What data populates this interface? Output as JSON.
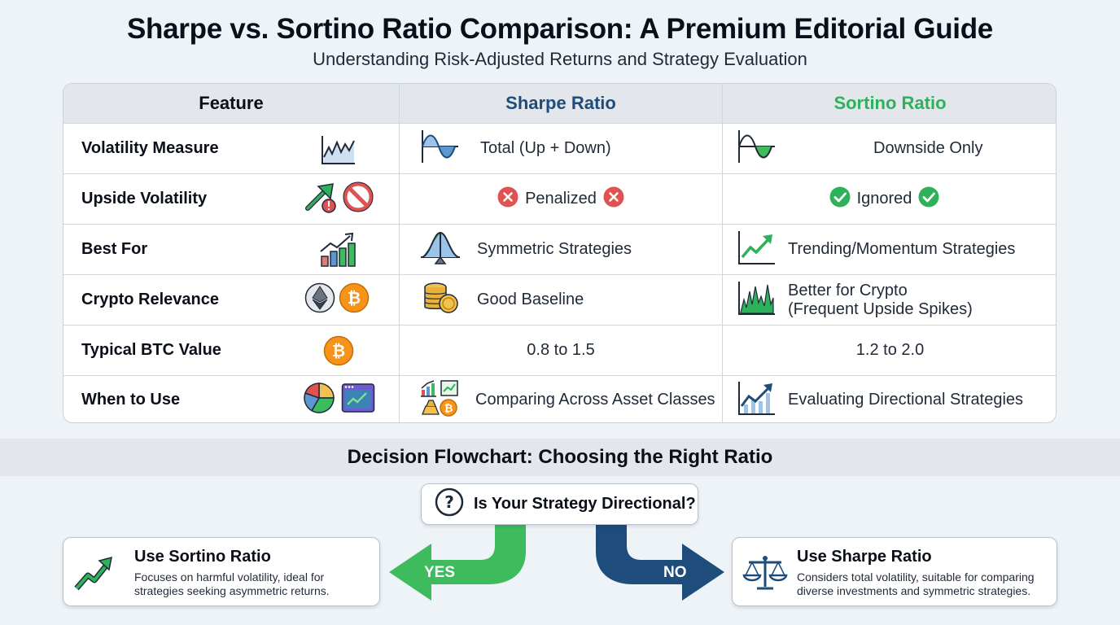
{
  "title": "Sharpe vs. Sortino Ratio Comparison: A Premium Editorial Guide",
  "subtitle": "Understanding Risk-Adjusted Returns and Strategy Evaluation",
  "colors": {
    "sharpe": "#1e4d7b",
    "sortino": "#2fb05a",
    "penalized": "#e05252",
    "ignored": "#2fb05a",
    "yes_arrow": "#3dbb5d",
    "no_arrow": "#1e4d7b"
  },
  "table": {
    "headers": {
      "feature": "Feature",
      "sharpe": "Sharpe Ratio",
      "sortino": "Sortino Ratio"
    },
    "rows": [
      {
        "feature": "Volatility Measure",
        "feature_icons": [
          "line-chart-icon"
        ],
        "sharpe": "Total (Up + Down)",
        "sharpe_icon": "full-wave-icon",
        "sortino": "Downside Only",
        "sortino_icon": "downside-wave-icon"
      },
      {
        "feature": "Upside Volatility",
        "feature_icons": [
          "upward-arrow-warning-icon",
          "prohibited-icon"
        ],
        "sharpe": "Penalized",
        "sharpe_icon": "x-circle-icon",
        "sortino": "Ignored",
        "sortino_icon": "check-circle-icon"
      },
      {
        "feature": "Best For",
        "feature_icons": [
          "bar-chart-trend-icon"
        ],
        "sharpe": "Symmetric Strategies",
        "sharpe_icon": "symmetric-distribution-icon",
        "sortino": "Trending/Momentum Strategies",
        "sortino_icon": "trend-up-icon"
      },
      {
        "feature": "Crypto Relevance",
        "feature_icons": [
          "ethereum-icon",
          "bitcoin-icon"
        ],
        "sharpe": "Good Baseline",
        "sharpe_icon": "coin-stack-icon",
        "sortino": "Better for Crypto",
        "sortino_line2": "(Frequent Upside Spikes)",
        "sortino_icon": "spike-chart-icon"
      },
      {
        "feature": "Typical BTC Value",
        "feature_icons": [
          "bitcoin-icon"
        ],
        "sharpe": "0.8 to 1.5",
        "sortino": "1.2 to 2.0"
      },
      {
        "feature": "When to Use",
        "feature_icons": [
          "pie-chart-icon",
          "browser-chart-icon"
        ],
        "sharpe": "Comparing Across Asset Classes",
        "sharpe_icon": "asset-classes-icon",
        "sortino": "Evaluating Directional Strategies",
        "sortino_icon": "directional-chart-icon"
      }
    ]
  },
  "flowchart": {
    "title": "Decision Flowchart: Choosing the Right Ratio",
    "question": "Is Your Strategy Directional?",
    "question_icon": "question-icon",
    "yes_label": "YES",
    "no_label": "NO",
    "left_card": {
      "title": "Use Sortino Ratio",
      "desc_line1": "Focuses on harmful volatility, ideal for",
      "desc_line2": "strategies seeking asymmetric returns.",
      "icon": "trend-up-arrow-icon"
    },
    "right_card": {
      "title": "Use Sharpe Ratio",
      "desc_line1": "Considers total volatility, suitable for comparing",
      "desc_line2": "diverse investments and symmetric strategies.",
      "icon": "balance-scale-icon"
    }
  }
}
